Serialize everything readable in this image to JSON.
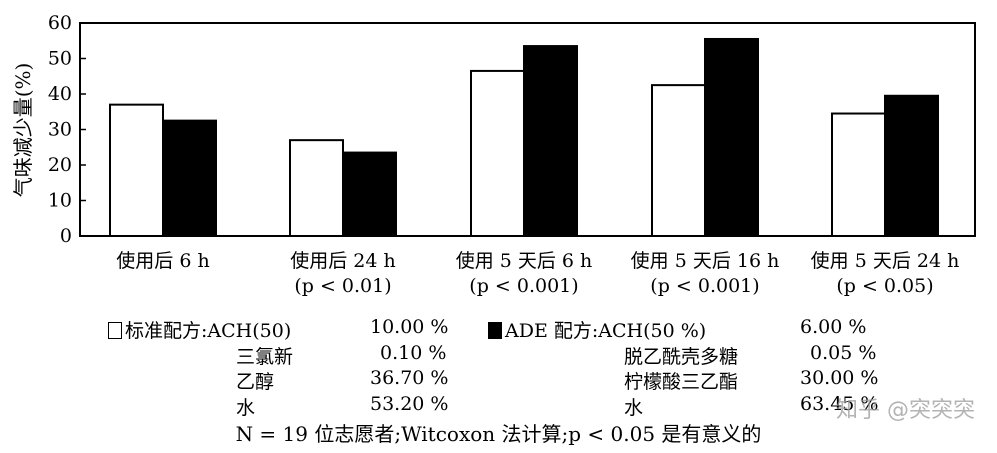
{
  "chart_data": {
    "type": "bar",
    "ylabel": "气味减少量(%)",
    "ylim": [
      0,
      60
    ],
    "yticks": [
      "0",
      "10",
      "20",
      "30",
      "40",
      "50",
      "60"
    ],
    "categories": [
      [
        "使用后 6 h",
        ""
      ],
      [
        "使用后 24 h",
        "(p  < 0.01)"
      ],
      [
        "使用 5 天后 6 h",
        "(p  < 0.001)"
      ],
      [
        "使用 5 天后 16 h",
        "(p  < 0.001)"
      ],
      [
        "使用 5 天后 24 h",
        "(p  < 0.05)"
      ]
    ],
    "series": [
      {
        "name": "标准配方",
        "fill": "#ffffff",
        "values": [
          37,
          27,
          46.5,
          42.5,
          34.5
        ]
      },
      {
        "name": "ADE 配方",
        "fill": "#000000",
        "values": [
          32.5,
          23.5,
          53.5,
          55.5,
          39.5
        ]
      }
    ]
  },
  "legend": {
    "left": {
      "rows": [
        {
          "name": "标准配方:ACH(50)",
          "value": "10.00 %"
        },
        {
          "name": "三氯新",
          "value": "0.10 %"
        },
        {
          "name": "乙醇",
          "value": "36.70 %"
        },
        {
          "name": "水",
          "value": "53.20 %"
        }
      ]
    },
    "right": {
      "rows": [
        {
          "name": "ADE 配方:ACH(50 %)",
          "value": "6.00 %"
        },
        {
          "name": "脱乙酰壳多糖",
          "value": "0.05 %"
        },
        {
          "name": "柠檬酸三乙酯",
          "value": "30.00 %"
        },
        {
          "name": "水",
          "value": "63.45 %"
        }
      ]
    }
  },
  "footnote": "N = 19 位志愿者;Witcoxon 法计算;p < 0.05 是有意义的",
  "watermark": "知乎 @突突突"
}
